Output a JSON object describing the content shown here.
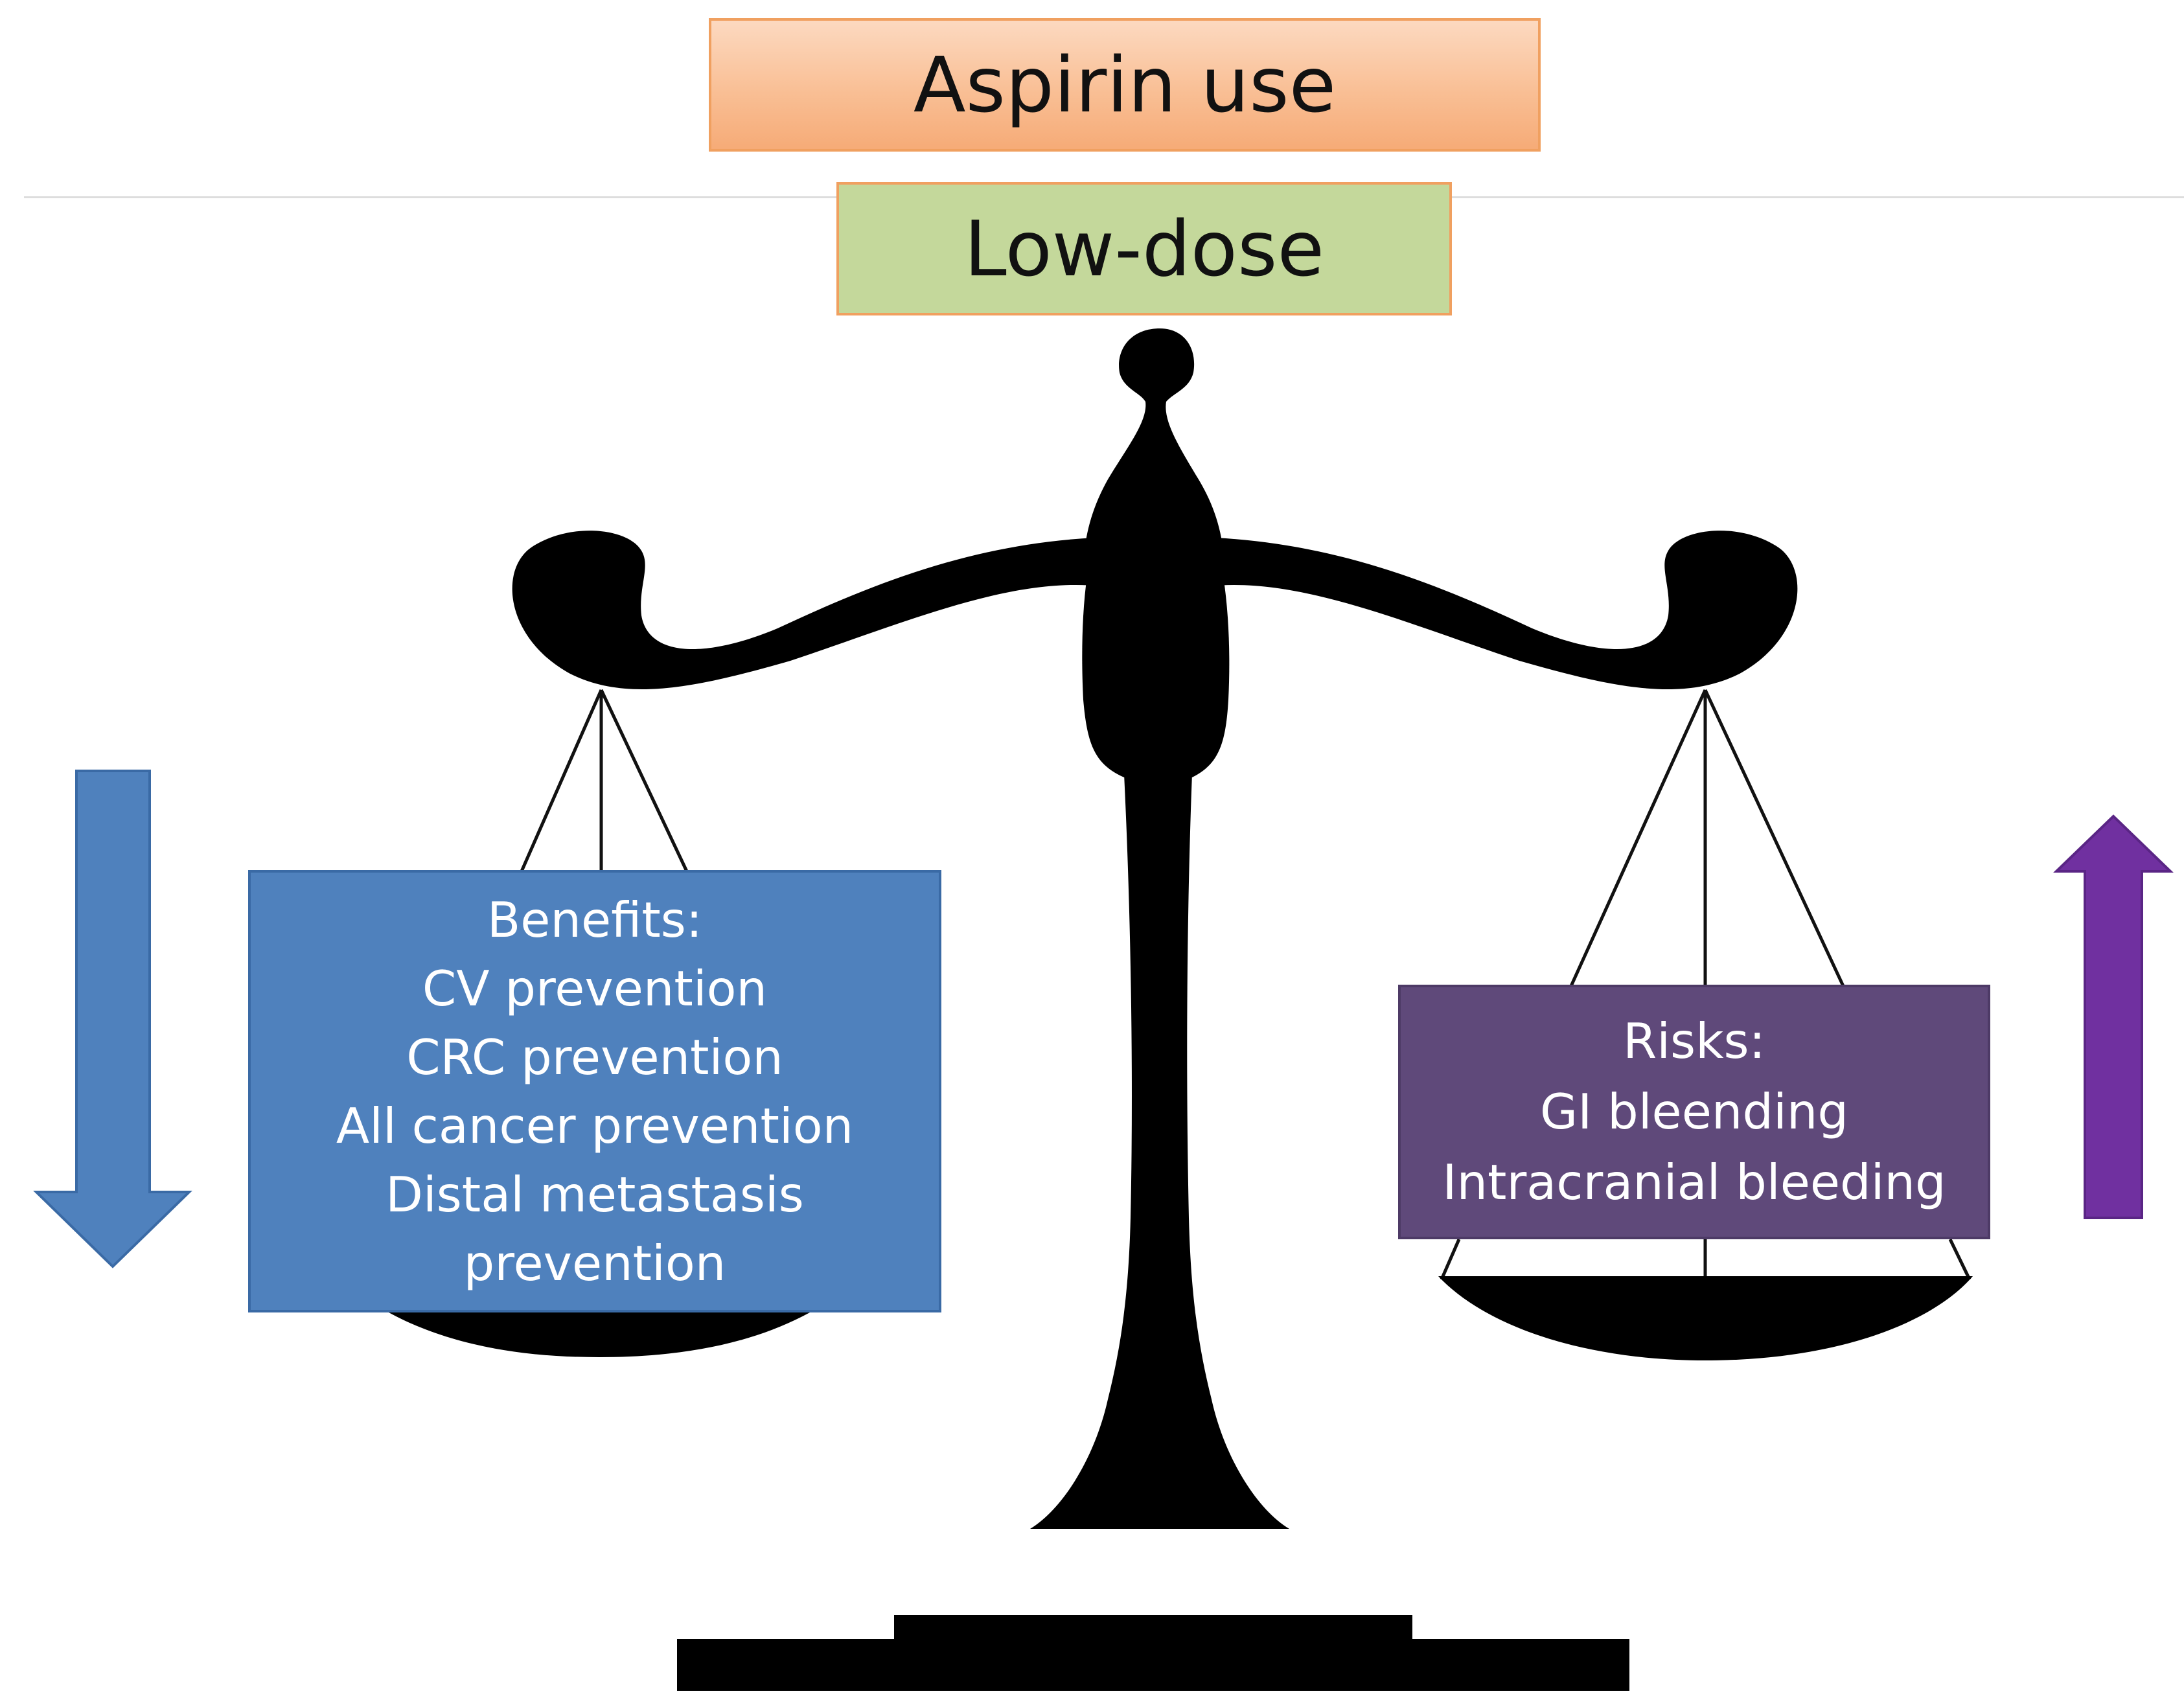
{
  "header": {
    "title": "Aspirin use",
    "dose": "Low-dose"
  },
  "benefits": {
    "heading": "Benefits:",
    "items": [
      "CV prevention",
      "CRC prevention",
      "All cancer prevention",
      "Distal metastasis",
      "prevention"
    ]
  },
  "risks": {
    "heading": "Risks:",
    "items": [
      "GI bleending",
      "Intracranial bleeding"
    ]
  },
  "colors": {
    "title_fill": "#f9bf95",
    "dose_fill": "#c4d89b",
    "benefits_fill": "#4f81bd",
    "risks_fill": "#5f497a",
    "down_arrow": "#4f81bd",
    "up_arrow": "#7030a0",
    "scale": "#000000"
  },
  "icons": {
    "down_arrow": "arrow-down-icon",
    "up_arrow": "arrow-up-icon",
    "scale": "balance-scale-icon"
  }
}
